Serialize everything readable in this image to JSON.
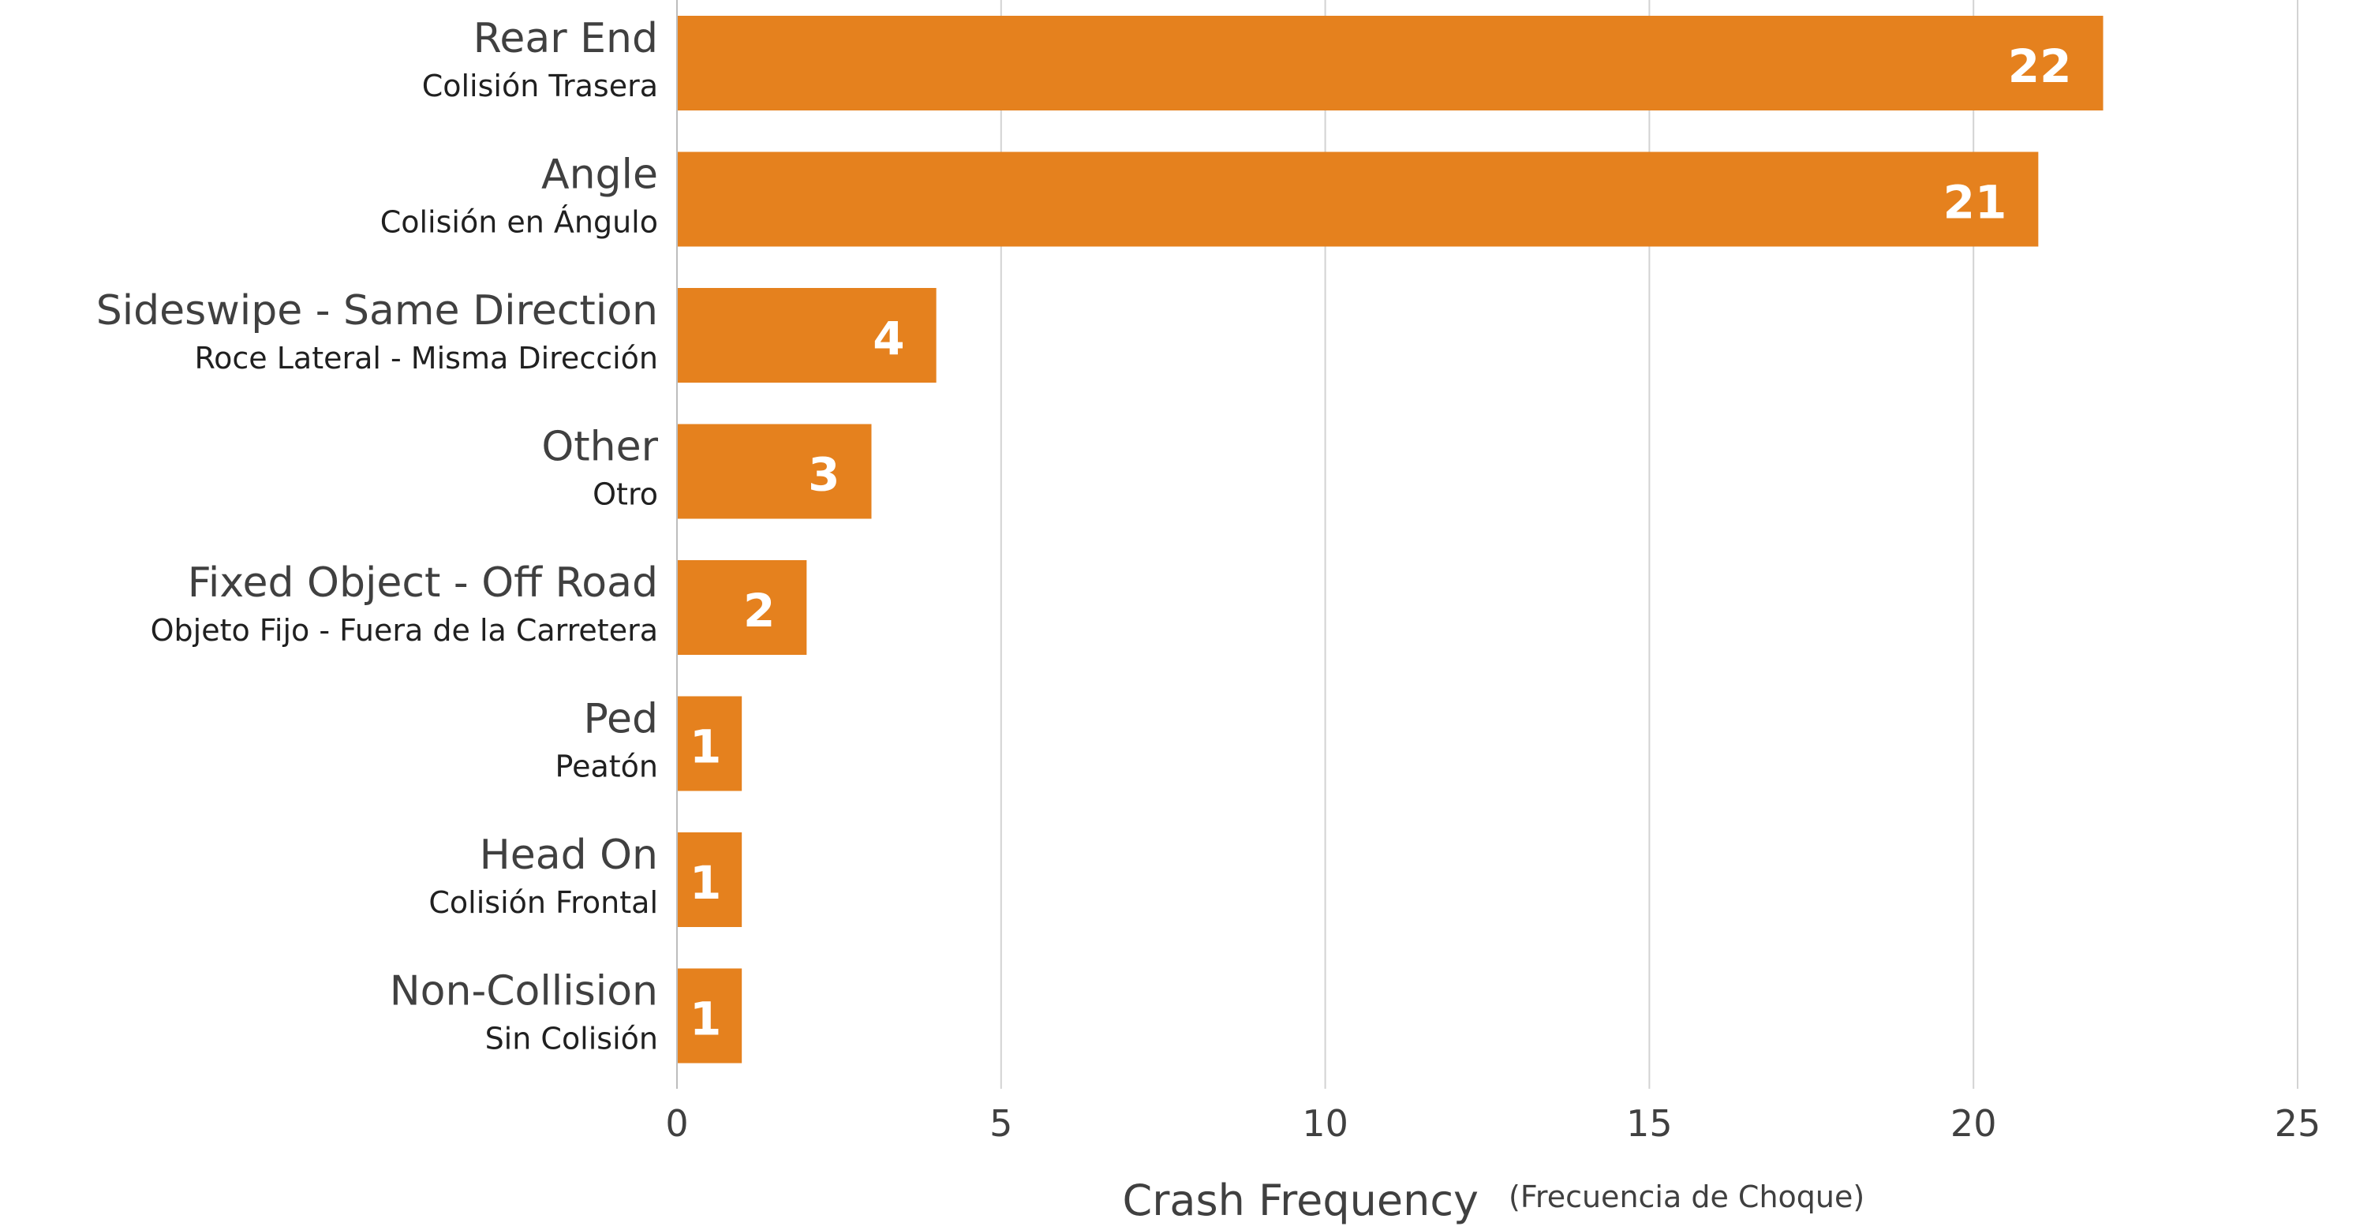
{
  "chart_data": {
    "type": "bar",
    "orientation": "horizontal",
    "categories": [
      {
        "label": "Rear End",
        "sublabel": "Colisión Trasera"
      },
      {
        "label": "Angle",
        "sublabel": "Colisión en Ángulo"
      },
      {
        "label": "Sideswipe - Same Direction",
        "sublabel": "Roce Lateral - Misma Dirección"
      },
      {
        "label": "Other",
        "sublabel": "Otro"
      },
      {
        "label": "Fixed Object - Off Road",
        "sublabel": "Objeto Fijo - Fuera de la Carretera"
      },
      {
        "label": "Ped",
        "sublabel": "Peatón"
      },
      {
        "label": "Head On",
        "sublabel": "Colisión Frontal"
      },
      {
        "label": "Non-Collision",
        "sublabel": "Sin Colisión"
      }
    ],
    "values": [
      22,
      21,
      4,
      3,
      2,
      1,
      1,
      1
    ],
    "xlabel": "Crash Frequency",
    "xlabel_sub": "(Frecuencia de Choque)",
    "ylabel": "",
    "xlim": [
      0,
      25
    ],
    "xticks": [
      0,
      5,
      10,
      15,
      20,
      25
    ],
    "grid": "vertical",
    "legend": "none",
    "bar_color": "#e5811e",
    "value_label_color": "#ffffff"
  }
}
